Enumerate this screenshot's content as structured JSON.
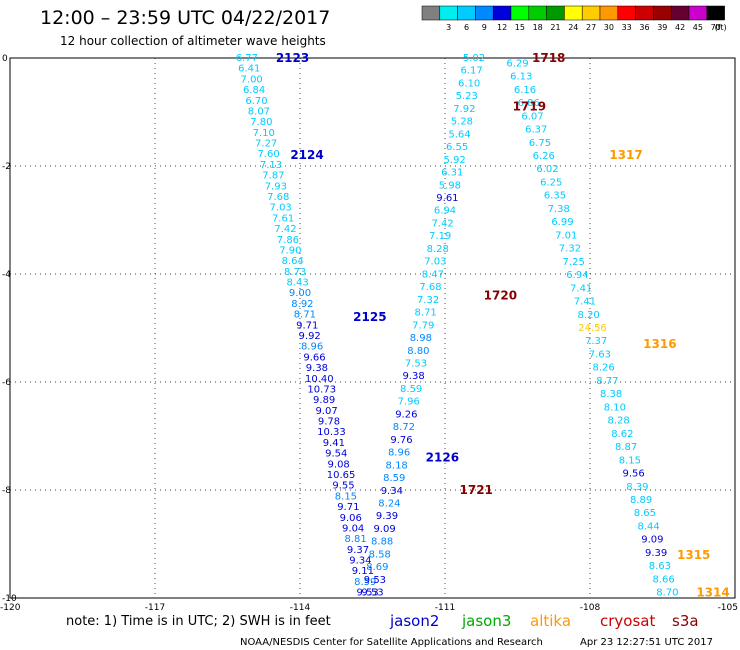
{
  "title": "12:00 – 23:59 UTC 04/22/2017",
  "subtitle": "12 hour collection of altimeter wave heights",
  "note": "note:  1) Time is in UTC; 2) SWH is in feet",
  "footer_left": "NOAA/NESDIS Center for Satellite Applications and Research",
  "footer_right": "Apr 23 12:27:51 UTC 2017",
  "satellites": [
    {
      "name": "jason2",
      "color": "#0000cc"
    },
    {
      "name": "jason3",
      "color": "#00aa00"
    },
    {
      "name": "altika",
      "color": "#ff9900"
    },
    {
      "name": "cryosat",
      "color": "#cc0000"
    },
    {
      "name": "s3a",
      "color": "#880000"
    }
  ],
  "colorbar": {
    "unit": "(ft)",
    "bins": [
      {
        "label": "",
        "color": "#808080"
      },
      {
        "label": "3",
        "color": "#00eeee"
      },
      {
        "label": "6",
        "color": "#00ccff"
      },
      {
        "label": "9",
        "color": "#0088ff"
      },
      {
        "label": "12",
        "color": "#0000dd"
      },
      {
        "label": "15",
        "color": "#00ff00"
      },
      {
        "label": "18",
        "color": "#00cc00"
      },
      {
        "label": "21",
        "color": "#009900"
      },
      {
        "label": "24",
        "color": "#ffff00"
      },
      {
        "label": "27",
        "color": "#ffcc00"
      },
      {
        "label": "30",
        "color": "#ff9900"
      },
      {
        "label": "33",
        "color": "#ff0000"
      },
      {
        "label": "36",
        "color": "#cc0000"
      },
      {
        "label": "39",
        "color": "#990000"
      },
      {
        "label": "42",
        "color": "#660033"
      },
      {
        "label": "45",
        "color": "#cc00cc"
      },
      {
        "label": "70",
        "color": "#000000"
      }
    ]
  },
  "chart_data": {
    "type": "scatter",
    "xlim": [
      -120,
      -105
    ],
    "ylim": [
      -10,
      0
    ],
    "x_ticks": [
      {
        "value": -120,
        "label": "-120"
      },
      {
        "value": -117,
        "label": "-117"
      },
      {
        "value": -114,
        "label": "-114"
      },
      {
        "value": -111,
        "label": "-111"
      },
      {
        "value": -108,
        "label": "-108"
      },
      {
        "value": -105,
        "label": "-105"
      }
    ],
    "y_ticks": [
      {
        "value": 0,
        "label": "0"
      },
      {
        "value": -2,
        "label": "-2"
      },
      {
        "value": -4,
        "label": "-4"
      },
      {
        "value": -6,
        "label": "-6"
      },
      {
        "value": -8,
        "label": "-8"
      },
      {
        "value": -10,
        "label": "-10"
      }
    ],
    "grid": true,
    "pass_labels": [
      {
        "text": "2123",
        "x": -114.5,
        "y": 0.0,
        "color": "#0000cc"
      },
      {
        "text": "2124",
        "x": -114.2,
        "y": -1.8,
        "color": "#0000cc"
      },
      {
        "text": "2125",
        "x": -112.9,
        "y": -4.8,
        "color": "#0000cc"
      },
      {
        "text": "2126",
        "x": -111.4,
        "y": -7.4,
        "color": "#0000cc"
      },
      {
        "text": "1718",
        "x": -109.2,
        "y": 0.0,
        "color": "#880000"
      },
      {
        "text": "1719",
        "x": -109.6,
        "y": -0.9,
        "color": "#880000"
      },
      {
        "text": "1720",
        "x": -110.2,
        "y": -4.4,
        "color": "#880000"
      },
      {
        "text": "1721",
        "x": -110.7,
        "y": -8.0,
        "color": "#880000"
      },
      {
        "text": "1317",
        "x": -107.6,
        "y": -1.8,
        "color": "#ff9900"
      },
      {
        "text": "1316",
        "x": -106.9,
        "y": -5.3,
        "color": "#ff9900"
      },
      {
        "text": "1315",
        "x": -106.2,
        "y": -9.2,
        "color": "#ff9900"
      },
      {
        "text": "1314",
        "x": -105.8,
        "y": -9.9,
        "color": "#ff9900"
      }
    ],
    "tracks": [
      {
        "name": "jason2",
        "x_start": -115.1,
        "y_start": 0.0,
        "x_end": -112.6,
        "y_end": -9.9,
        "points": [
          {
            "v": "6.77",
            "c": "#00ccff"
          },
          {
            "v": "6.41",
            "c": "#00ccff"
          },
          {
            "v": "7.00",
            "c": "#00ccff"
          },
          {
            "v": "6.84",
            "c": "#00ccff"
          },
          {
            "v": "6.70",
            "c": "#00ccff"
          },
          {
            "v": "8.07",
            "c": "#00ccff"
          },
          {
            "v": "7.80",
            "c": "#00ccff"
          },
          {
            "v": "7.10",
            "c": "#00ccff"
          },
          {
            "v": "7.27",
            "c": "#00ccff"
          },
          {
            "v": "7.60",
            "c": "#00ccff"
          },
          {
            "v": "7.13",
            "c": "#00ccff"
          },
          {
            "v": "7.87",
            "c": "#00ccff"
          },
          {
            "v": "7.93",
            "c": "#00ccff"
          },
          {
            "v": "7.68",
            "c": "#00ccff"
          },
          {
            "v": "7.03",
            "c": "#00ccff"
          },
          {
            "v": "7.61",
            "c": "#00ccff"
          },
          {
            "v": "7.42",
            "c": "#00ccff"
          },
          {
            "v": "7.86",
            "c": "#00ccff"
          },
          {
            "v": "7.90",
            "c": "#00ccff"
          },
          {
            "v": "8.64",
            "c": "#00ccff"
          },
          {
            "v": "8.73",
            "c": "#00ccff"
          },
          {
            "v": "8.43",
            "c": "#00ccff"
          },
          {
            "v": "9.00",
            "c": "#0088ff"
          },
          {
            "v": "8.92",
            "c": "#0088ff"
          },
          {
            "v": "8.71",
            "c": "#0088ff"
          },
          {
            "v": "9.71",
            "c": "#0000dd"
          },
          {
            "v": "9.92",
            "c": "#0000dd"
          },
          {
            "v": "8.96",
            "c": "#0088ff"
          },
          {
            "v": "9.66",
            "c": "#0000dd"
          },
          {
            "v": "9.38",
            "c": "#0000dd"
          },
          {
            "v": "10.40",
            "c": "#0000dd"
          },
          {
            "v": "10.73",
            "c": "#0000dd"
          },
          {
            "v": "9.89",
            "c": "#0000dd"
          },
          {
            "v": "9.07",
            "c": "#0000dd"
          },
          {
            "v": "9.78",
            "c": "#0000dd"
          },
          {
            "v": "10.33",
            "c": "#0000dd"
          },
          {
            "v": "9.41",
            "c": "#0000dd"
          },
          {
            "v": "9.54",
            "c": "#0000dd"
          },
          {
            "v": "9.08",
            "c": "#0000dd"
          },
          {
            "v": "10.65",
            "c": "#0000dd"
          },
          {
            "v": "9.55",
            "c": "#0000dd"
          },
          {
            "v": "8.15",
            "c": "#0088ff"
          },
          {
            "v": "9.71",
            "c": "#0000dd"
          },
          {
            "v": "9.06",
            "c": "#0000dd"
          },
          {
            "v": "9.04",
            "c": "#0000dd"
          },
          {
            "v": "8.81",
            "c": "#0088ff"
          },
          {
            "v": "9.37",
            "c": "#0000dd"
          },
          {
            "v": "9.34",
            "c": "#0000dd"
          },
          {
            "v": "9.11",
            "c": "#0000dd"
          },
          {
            "v": "8.59",
            "c": "#0088ff"
          },
          {
            "v": "9.53",
            "c": "#0000dd"
          }
        ]
      },
      {
        "name": "s3a-1718",
        "x_start": -110.4,
        "y_start": 0.0,
        "x_end": -112.5,
        "y_end": -9.9,
        "points": [
          {
            "v": "5.02",
            "c": "#00ccff"
          },
          {
            "v": "6.17",
            "c": "#00ccff"
          },
          {
            "v": "6.10",
            "c": "#00ccff"
          },
          {
            "v": "5.23",
            "c": "#00ccff"
          },
          {
            "v": "7.92",
            "c": "#00ccff"
          },
          {
            "v": "5.28",
            "c": "#00ccff"
          },
          {
            "v": "5.64",
            "c": "#00ccff"
          },
          {
            "v": "6.55",
            "c": "#00ccff"
          },
          {
            "v": "5.92",
            "c": "#00ccff"
          },
          {
            "v": "6.31",
            "c": "#00ccff"
          },
          {
            "v": "5.98",
            "c": "#00ccff"
          },
          {
            "v": "9.61",
            "c": "#0000dd"
          },
          {
            "v": "6.94",
            "c": "#00ccff"
          },
          {
            "v": "7.42",
            "c": "#00ccff"
          },
          {
            "v": "7.19",
            "c": "#00ccff"
          },
          {
            "v": "8.28",
            "c": "#00ccff"
          },
          {
            "v": "7.03",
            "c": "#00ccff"
          },
          {
            "v": "8.47",
            "c": "#00ccff"
          },
          {
            "v": "7.68",
            "c": "#00ccff"
          },
          {
            "v": "7.32",
            "c": "#00ccff"
          },
          {
            "v": "8.71",
            "c": "#00ccff"
          },
          {
            "v": "7.79",
            "c": "#00ccff"
          },
          {
            "v": "8.98",
            "c": "#0088ff"
          },
          {
            "v": "8.80",
            "c": "#0088ff"
          },
          {
            "v": "7.53",
            "c": "#00ccff"
          },
          {
            "v": "9.38",
            "c": "#0000dd"
          },
          {
            "v": "8.59",
            "c": "#00ccff"
          },
          {
            "v": "7.96",
            "c": "#00ccff"
          },
          {
            "v": "9.26",
            "c": "#0000dd"
          },
          {
            "v": "8.72",
            "c": "#0088ff"
          },
          {
            "v": "9.76",
            "c": "#0000dd"
          },
          {
            "v": "8.96",
            "c": "#0088ff"
          },
          {
            "v": "8.18",
            "c": "#0088ff"
          },
          {
            "v": "8.59",
            "c": "#0088ff"
          },
          {
            "v": "9.34",
            "c": "#0000dd"
          },
          {
            "v": "8.24",
            "c": "#0088ff"
          },
          {
            "v": "9.39",
            "c": "#0000dd"
          },
          {
            "v": "9.09",
            "c": "#0000dd"
          },
          {
            "v": "8.88",
            "c": "#0088ff"
          },
          {
            "v": "8.58",
            "c": "#0088ff"
          },
          {
            "v": "8.69",
            "c": "#0088ff"
          },
          {
            "v": "9.53",
            "c": "#0000dd"
          },
          {
            "v": "9.53",
            "c": "#0000dd"
          }
        ]
      },
      {
        "name": "altika-1317",
        "x_start": -109.5,
        "y_start": -0.1,
        "x_end": -106.4,
        "y_end": -9.9,
        "points": [
          {
            "v": "6.29",
            "c": "#00ccff"
          },
          {
            "v": "6.13",
            "c": "#00ccff"
          },
          {
            "v": "6.16",
            "c": "#00ccff"
          },
          {
            "v": "6.86",
            "c": "#00ccff"
          },
          {
            "v": "6.07",
            "c": "#00ccff"
          },
          {
            "v": "6.37",
            "c": "#00ccff"
          },
          {
            "v": "6.75",
            "c": "#00ccff"
          },
          {
            "v": "6.26",
            "c": "#00ccff"
          },
          {
            "v": "6.02",
            "c": "#00ccff"
          },
          {
            "v": "6.25",
            "c": "#00ccff"
          },
          {
            "v": "6.35",
            "c": "#00ccff"
          },
          {
            "v": "7.38",
            "c": "#00ccff"
          },
          {
            "v": "6.99",
            "c": "#00ccff"
          },
          {
            "v": "7.01",
            "c": "#00ccff"
          },
          {
            "v": "7.32",
            "c": "#00ccff"
          },
          {
            "v": "7.25",
            "c": "#00ccff"
          },
          {
            "v": "6.94",
            "c": "#00ccff"
          },
          {
            "v": "7.41",
            "c": "#00ccff"
          },
          {
            "v": "7.41",
            "c": "#00ccff"
          },
          {
            "v": "8.20",
            "c": "#00ccff"
          },
          {
            "v": "24.56",
            "c": "#ffcc00"
          },
          {
            "v": "7.37",
            "c": "#00ccff"
          },
          {
            "v": "7.63",
            "c": "#00ccff"
          },
          {
            "v": "8.26",
            "c": "#00ccff"
          },
          {
            "v": "8.77",
            "c": "#00ccff"
          },
          {
            "v": "8.38",
            "c": "#00ccff"
          },
          {
            "v": "8.10",
            "c": "#00ccff"
          },
          {
            "v": "8.28",
            "c": "#00ccff"
          },
          {
            "v": "8.62",
            "c": "#00ccff"
          },
          {
            "v": "8.87",
            "c": "#00ccff"
          },
          {
            "v": "8.15",
            "c": "#00ccff"
          },
          {
            "v": "9.56",
            "c": "#0000dd"
          },
          {
            "v": "8.39",
            "c": "#00ccff"
          },
          {
            "v": "8.89",
            "c": "#00ccff"
          },
          {
            "v": "8.65",
            "c": "#00ccff"
          },
          {
            "v": "8.44",
            "c": "#00ccff"
          },
          {
            "v": "9.09",
            "c": "#0000dd"
          },
          {
            "v": "9.39",
            "c": "#0000dd"
          },
          {
            "v": "8.63",
            "c": "#00ccff"
          },
          {
            "v": "8.66",
            "c": "#00ccff"
          },
          {
            "v": "8.70",
            "c": "#00ccff"
          }
        ]
      }
    ]
  }
}
